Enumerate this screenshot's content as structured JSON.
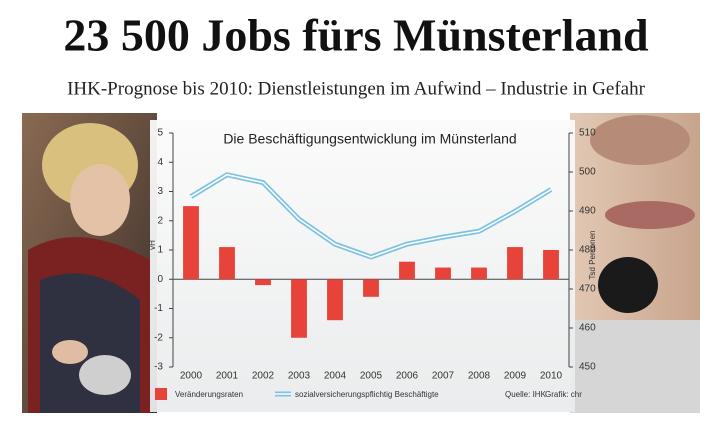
{
  "headline": "23 500 Jobs fürs Münsterland",
  "subheadline": "IHK-Prognose bis 2010: Dienstleistungen im Aufwind – Industrie in Gefahr",
  "chart_data": {
    "type": "bar",
    "title": "Die Beschäftigungsentwicklung im Münsterland",
    "y_label": "vH",
    "y2_label": "Tsd Personen",
    "source": "Quelle: IHK",
    "credit": "Grafik: chr",
    "categories": [
      "2000",
      "2001",
      "2002",
      "2003",
      "2004",
      "2005",
      "2006",
      "2007",
      "2008",
      "2009",
      "2010"
    ],
    "series": [
      {
        "name": "Veränderungsraten",
        "type": "bar",
        "color": "#e8433a",
        "values": [
          2.5,
          1.1,
          -0.2,
          -2.0,
          -1.4,
          -0.6,
          0.6,
          0.4,
          0.4,
          1.1,
          1.0
        ]
      },
      {
        "name": "sozialversicherungspflichtig Beschäftigte",
        "type": "line",
        "axis": "y2",
        "color": "#7fc3e0",
        "values": [
          493.7,
          499.3,
          497.3,
          487.9,
          481.5,
          478.2,
          481.5,
          483.3,
          484.8,
          489.9,
          495.5
        ]
      }
    ],
    "ylim": [
      -3,
      5
    ],
    "yticks": [
      -3,
      -2,
      -1,
      0,
      1,
      2,
      3,
      4,
      5
    ],
    "y2lim": [
      450,
      510
    ],
    "y2ticks": [
      450,
      460,
      470,
      480,
      490,
      500,
      510
    ]
  }
}
